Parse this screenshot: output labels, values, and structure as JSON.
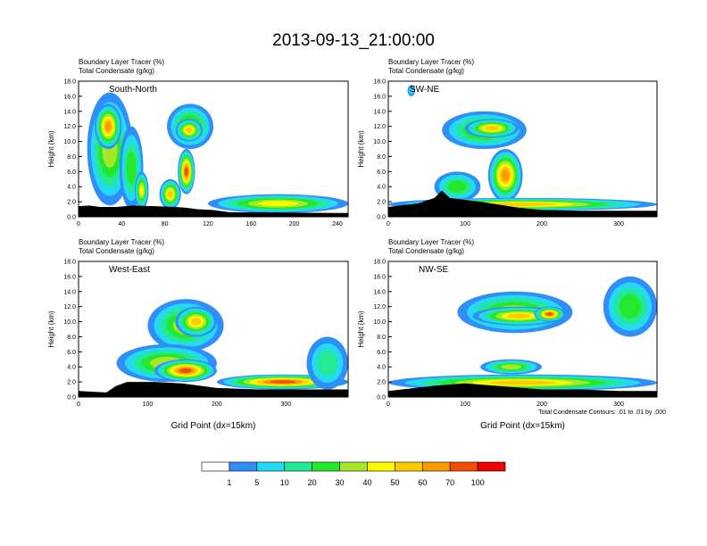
{
  "title": "2013-09-13_21:00:00",
  "palette": {
    "levels": [
      "1",
      "5",
      "10",
      "20",
      "30",
      "40",
      "50",
      "60",
      "70",
      "100"
    ],
    "colors": [
      "#ffffff",
      "#2f8ef7",
      "#25d9f4",
      "#23e895",
      "#26e82a",
      "#a6e829",
      "#fbf800",
      "#fbcb00",
      "#f99a00",
      "#f24d00",
      "#ee0000"
    ]
  },
  "chart_data": [
    {
      "type": "heatmap",
      "label": "South-North",
      "left_title": [
        "Boundary Layer Tracer   (%)",
        "Total Condensate   (g/kg)"
      ],
      "ylabel": "Height (km)",
      "xlabel": "",
      "ylim": [
        0,
        18
      ],
      "yticks": [
        "0.0",
        "2.0",
        "4.0",
        "6.0",
        "8.0",
        "10.0",
        "12.0",
        "14.0",
        "16.0",
        "18.0"
      ],
      "xlim": [
        0,
        250
      ],
      "xticks": [
        0,
        40,
        80,
        120,
        160,
        200,
        240
      ],
      "surface": [
        [
          0,
          1.4
        ],
        [
          10,
          1.5
        ],
        [
          20,
          1.3
        ],
        [
          35,
          1.3
        ],
        [
          50,
          1.5
        ],
        [
          70,
          1.4
        ],
        [
          90,
          1.3
        ],
        [
          100,
          1.2
        ],
        [
          110,
          1.0
        ],
        [
          125,
          0.9
        ],
        [
          140,
          0.6
        ],
        [
          250,
          0.5
        ]
      ],
      "clouds": [
        {
          "x": [
            8,
            50
          ],
          "z": [
            1.5,
            16.5
          ],
          "v": 30
        },
        {
          "x": [
            15,
            40
          ],
          "z": [
            9,
            15
          ],
          "v": 60
        },
        {
          "x": [
            38,
            60
          ],
          "z": [
            1,
            12
          ],
          "v": 20
        },
        {
          "x": [
            52,
            65
          ],
          "z": [
            1,
            6
          ],
          "v": 40
        },
        {
          "x": [
            82,
            125
          ],
          "z": [
            9,
            15
          ],
          "v": 30
        },
        {
          "x": [
            90,
            115
          ],
          "z": [
            10,
            13
          ],
          "v": 50
        },
        {
          "x": [
            92,
            108
          ],
          "z": [
            3,
            9
          ],
          "v": 70
        },
        {
          "x": [
            75,
            95
          ],
          "z": [
            1,
            5
          ],
          "v": 50
        },
        {
          "x": [
            120,
            250
          ],
          "z": [
            0.5,
            3
          ],
          "v": 40
        }
      ]
    },
    {
      "type": "heatmap",
      "label": "SW-NE",
      "left_title": [
        "Boundary Layer Tracer   (%)",
        "Total Condensate   (g/kg)"
      ],
      "ylabel": "Height (km)",
      "xlabel": "",
      "ylim": [
        0,
        18
      ],
      "yticks": [
        "0.0",
        "2.0",
        "4.0",
        "6.0",
        "8.0",
        "10.0",
        "12.0",
        "14.0",
        "16.0",
        "18.0"
      ],
      "xlim": [
        0,
        350
      ],
      "xticks": [
        0,
        100,
        200,
        300
      ],
      "surface": [
        [
          0,
          1.3
        ],
        [
          40,
          1.8
        ],
        [
          60,
          2.5
        ],
        [
          70,
          3.5
        ],
        [
          80,
          2.5
        ],
        [
          120,
          2.0
        ],
        [
          170,
          1.2
        ],
        [
          200,
          0.9
        ],
        [
          250,
          0.8
        ],
        [
          350,
          0.8
        ]
      ],
      "clouds": [
        {
          "x": [
            25,
            35
          ],
          "z": [
            16,
            17.5
          ],
          "v": 5
        },
        {
          "x": [
            70,
            180
          ],
          "z": [
            9,
            14
          ],
          "v": 30
        },
        {
          "x": [
            100,
            170
          ],
          "z": [
            10.5,
            13
          ],
          "v": 50
        },
        {
          "x": [
            60,
            120
          ],
          "z": [
            2,
            6
          ],
          "v": 20
        },
        {
          "x": [
            130,
            175
          ],
          "z": [
            2,
            9
          ],
          "v": 60
        },
        {
          "x": [
            0,
            350
          ],
          "z": [
            0.8,
            2.5
          ],
          "v": 50
        }
      ]
    },
    {
      "type": "heatmap",
      "label": "West-East",
      "left_title": [
        "Boundary Layer Tracer   (%)",
        "Total Condensate   (g/kg)"
      ],
      "ylabel": "Height (km)",
      "xlabel": "Grid Point (dx=15km)",
      "ylim": [
        0,
        18
      ],
      "yticks": [
        "0.0",
        "2.0",
        "4.0",
        "6.0",
        "8.0",
        "10.0",
        "12.0",
        "14.0",
        "16.0",
        "18.0"
      ],
      "xlim": [
        0,
        390
      ],
      "xticks": [
        0,
        100,
        200,
        300
      ],
      "surface": [
        [
          0,
          0.8
        ],
        [
          40,
          0.6
        ],
        [
          55,
          1.5
        ],
        [
          70,
          2.0
        ],
        [
          110,
          2.0
        ],
        [
          150,
          1.8
        ],
        [
          200,
          1.2
        ],
        [
          260,
          1.0
        ],
        [
          390,
          1.0
        ]
      ],
      "clouds": [
        {
          "x": [
            100,
            210
          ],
          "z": [
            6,
            13
          ],
          "v": 30
        },
        {
          "x": [
            140,
            200
          ],
          "z": [
            8,
            12
          ],
          "v": 50
        },
        {
          "x": [
            55,
            200
          ],
          "z": [
            2,
            7
          ],
          "v": 30
        },
        {
          "x": [
            110,
            200
          ],
          "z": [
            2,
            5
          ],
          "v": 70
        },
        {
          "x": [
            200,
            390
          ],
          "z": [
            1,
            3
          ],
          "v": 70
        },
        {
          "x": [
            330,
            390
          ],
          "z": [
            1,
            8
          ],
          "v": 10
        }
      ]
    },
    {
      "type": "heatmap",
      "label": "NW-SE",
      "left_title": [
        "Boundary Layer Tracer   (%)",
        "Total Condensate   (g/kg)"
      ],
      "ylabel": "Height (km)",
      "xlabel": "Grid Point (dx=15km)",
      "ylim": [
        0,
        18
      ],
      "yticks": [
        "0.0",
        "2.0",
        "4.0",
        "6.0",
        "8.0",
        "10.0",
        "12.0",
        "14.0",
        "16.0",
        "18.0"
      ],
      "xlim": [
        0,
        350
      ],
      "xticks": [
        0,
        100,
        200,
        300
      ],
      "surface": [
        [
          0,
          0.8
        ],
        [
          60,
          1.5
        ],
        [
          100,
          1.8
        ],
        [
          150,
          1.4
        ],
        [
          200,
          1.0
        ],
        [
          250,
          1.0
        ],
        [
          300,
          0.8
        ],
        [
          350,
          0.8
        ]
      ],
      "clouds": [
        {
          "x": [
            90,
            240
          ],
          "z": [
            8.5,
            14
          ],
          "v": 30
        },
        {
          "x": [
            110,
            230
          ],
          "z": [
            9.5,
            12
          ],
          "v": 50
        },
        {
          "x": [
            190,
            230
          ],
          "z": [
            10,
            12
          ],
          "v": 70
        },
        {
          "x": [
            280,
            350
          ],
          "z": [
            8,
            16
          ],
          "v": 20
        },
        {
          "x": [
            120,
            200
          ],
          "z": [
            3,
            5
          ],
          "v": 30
        },
        {
          "x": [
            0,
            350
          ],
          "z": [
            0.8,
            3
          ],
          "v": 50
        }
      ]
    }
  ],
  "contour_note": "Total Condensate Contours: .01 to .01 by .000"
}
